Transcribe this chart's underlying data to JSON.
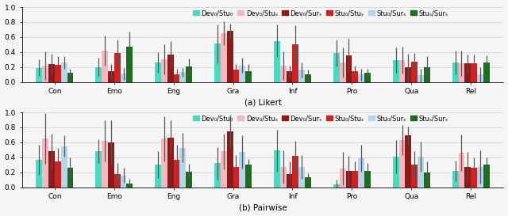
{
  "categories": [
    "Con",
    "Emo",
    "Eng",
    "Gra",
    "Inf",
    "Pro",
    "Qua",
    "Rel"
  ],
  "legend_labels": [
    "Dev₀/Stu₀",
    "Dev₀/Stuₛ",
    "Dev₀/Surₛ",
    "Stu₀/Stuₛ",
    "Stu₀/Surₛ",
    "Stuₛ/Surₛ"
  ],
  "colors": [
    "#4DD9C0",
    "#F4B8C1",
    "#8B1A1A",
    "#CC2222",
    "#B8D4E8",
    "#1F6B1F"
  ],
  "likert": {
    "values": [
      [
        0.19,
        0.2,
        0.26,
        0.51,
        0.55,
        0.39,
        0.29,
        0.26
      ],
      [
        0.22,
        0.42,
        0.3,
        0.65,
        0.22,
        0.26,
        0.29,
        0.25
      ],
      [
        0.24,
        0.14,
        0.37,
        0.68,
        0.14,
        0.36,
        0.2,
        0.25
      ],
      [
        0.23,
        0.39,
        0.1,
        0.16,
        0.5,
        0.14,
        0.27,
        0.25
      ],
      [
        0.26,
        0.11,
        0.13,
        0.22,
        0.16,
        0.1,
        0.09,
        0.1
      ],
      [
        0.12,
        0.47,
        0.21,
        0.14,
        0.1,
        0.12,
        0.2,
        0.26
      ]
    ],
    "errors": [
      [
        0.11,
        0.12,
        0.14,
        0.26,
        0.22,
        0.18,
        0.17,
        0.16
      ],
      [
        0.19,
        0.2,
        0.2,
        0.16,
        0.19,
        0.2,
        0.18,
        0.17
      ],
      [
        0.14,
        0.1,
        0.18,
        0.1,
        0.08,
        0.22,
        0.18,
        0.12
      ],
      [
        0.12,
        0.18,
        0.08,
        0.08,
        0.26,
        0.08,
        0.12,
        0.12
      ],
      [
        0.08,
        0.08,
        0.06,
        0.1,
        0.1,
        0.08,
        0.09,
        0.1
      ],
      [
        0.06,
        0.2,
        0.1,
        0.1,
        0.06,
        0.06,
        0.14,
        0.1
      ]
    ]
  },
  "pairwise": {
    "values": [
      [
        0.37,
        0.48,
        0.3,
        0.32,
        0.49,
        0.04,
        0.41,
        0.22
      ],
      [
        0.65,
        0.62,
        0.65,
        0.48,
        0.27,
        0.25,
        0.63,
        0.46
      ],
      [
        0.48,
        0.6,
        0.66,
        0.75,
        0.18,
        0.22,
        0.69,
        0.27
      ],
      [
        0.35,
        0.18,
        0.37,
        0.27,
        0.42,
        0.22,
        0.3,
        0.26
      ],
      [
        0.55,
        0.16,
        0.53,
        0.47,
        0.27,
        0.39,
        0.41,
        0.27
      ],
      [
        0.26,
        0.05,
        0.21,
        0.3,
        0.13,
        0.22,
        0.2,
        0.3
      ]
    ],
    "errors": [
      [
        0.2,
        0.16,
        0.18,
        0.22,
        0.28,
        0.06,
        0.22,
        0.14
      ],
      [
        0.34,
        0.28,
        0.3,
        0.24,
        0.22,
        0.22,
        0.2,
        0.24
      ],
      [
        0.24,
        0.3,
        0.24,
        0.22,
        0.16,
        0.2,
        0.12,
        0.2
      ],
      [
        0.18,
        0.14,
        0.2,
        0.16,
        0.2,
        0.12,
        0.18,
        0.14
      ],
      [
        0.14,
        0.1,
        0.2,
        0.22,
        0.16,
        0.18,
        0.2,
        0.22
      ],
      [
        0.14,
        0.06,
        0.1,
        0.08,
        0.06,
        0.1,
        0.14,
        0.1
      ]
    ]
  },
  "ylim": [
    0.0,
    1.0
  ],
  "yticks": [
    0.0,
    0.2,
    0.4,
    0.6,
    0.8,
    1.0
  ],
  "subtitle_a": "(a) Likert",
  "subtitle_b": "(b) Pairwise",
  "bar_width": 0.105,
  "figsize": [
    6.4,
    2.73
  ],
  "dpi": 100,
  "legend_fontsize": 6.0,
  "tick_fontsize": 6.5,
  "label_fontsize": 7.5,
  "bg_color": "#F5F5F5"
}
